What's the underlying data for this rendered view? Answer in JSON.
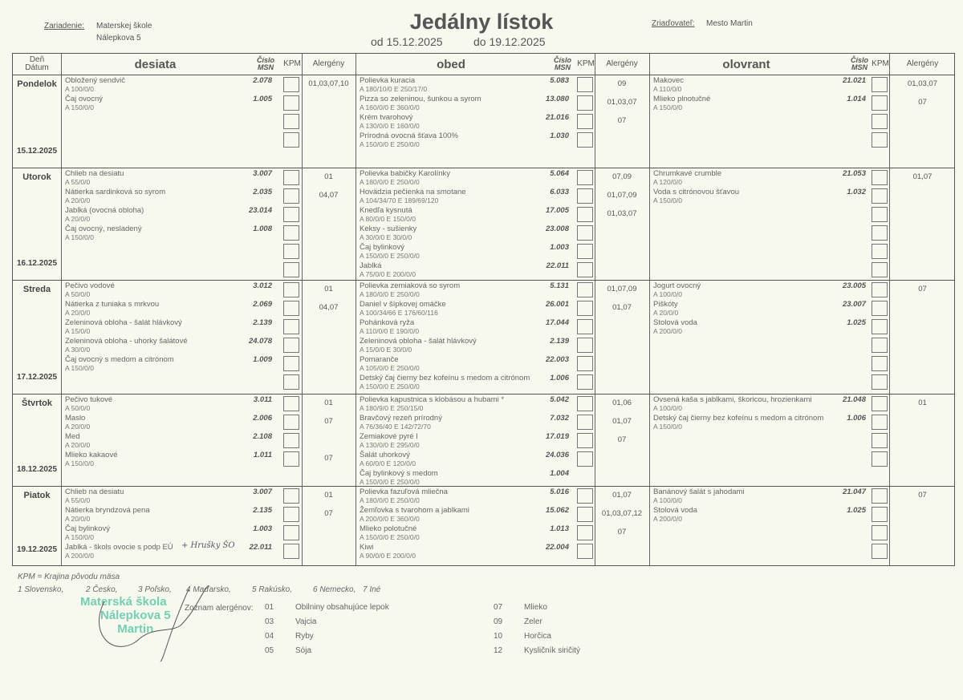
{
  "header": {
    "facility_label": "Zariadenie:",
    "facility_name": "Materskej škole",
    "facility_address": "Nálepkova 5",
    "title": "Jedálny lístok",
    "date_from": "od 15.12.2025",
    "date_to": "do 19.12.2025",
    "founder_label": "Zriaďovateľ:",
    "founder_name": "Mesto Martin"
  },
  "columns": {
    "day": "Deň",
    "date": "Dátum",
    "meals": [
      "desiata",
      "obed",
      "olovrant"
    ],
    "msn_1": "Číslo",
    "msn_2": "MSN",
    "kpm": "KPM",
    "allergens": "Alergény"
  },
  "days": [
    {
      "name": "Pondelok",
      "date": "15.12.2025",
      "meals": [
        [
          {
            "name": "Obložený sendvič",
            "portion": "A 100/0/0",
            "msn": "2.078",
            "allergens": "01,03,07,10"
          },
          {
            "name": "Čaj ovocný",
            "portion": "A 150/0/0",
            "msn": "1.005",
            "allergens": ""
          }
        ],
        [
          {
            "name": "Polievka kuracia",
            "portion": "A 180/10/0 E 250/17/0",
            "msn": "5.083",
            "allergens": "09"
          },
          {
            "name": "Pizza so zeleninou, šunkou a syrom",
            "portion": "A 160/0/0 E 360/0/0",
            "msn": "13.080",
            "allergens": "01,03,07"
          },
          {
            "name": "Krém tvarohový",
            "portion": "A 130/0/0 E 160/0/0",
            "msn": "21.016",
            "allergens": "07"
          },
          {
            "name": "Prírodná ovocná šťava 100%",
            "portion": "A 150/0/0 E 250/0/0",
            "msn": "1.030",
            "allergens": ""
          }
        ],
        [
          {
            "name": "Makovec",
            "portion": "A 110/0/0",
            "msn": "21.021",
            "allergens": "01,03,07"
          },
          {
            "name": "Mlieko plnotučné",
            "portion": "A 150/0/0",
            "msn": "1.014",
            "allergens": "07"
          }
        ]
      ]
    },
    {
      "name": "Utorok",
      "date": "16.12.2025",
      "meals": [
        [
          {
            "name": "Chlieb na desiatu",
            "portion": "A 55/0/0",
            "msn": "3.007",
            "allergens": "01"
          },
          {
            "name": "Nátierka sardinková so syrom",
            "portion": "A 20/0/0",
            "msn": "2.035",
            "allergens": "04,07"
          },
          {
            "name": "Jablká (ovocná obloha)",
            "portion": "A 20/0/0",
            "msn": "23.014",
            "allergens": ""
          },
          {
            "name": "Čaj ovocný, nesladený",
            "portion": "A 150/0/0",
            "msn": "1.008",
            "allergens": ""
          }
        ],
        [
          {
            "name": "Polievka babičky Karolínky",
            "portion": "A 180/0/0 E 250/0/0",
            "msn": "5.064",
            "allergens": "07,09"
          },
          {
            "name": "Hovädzia pečienka na smotane",
            "portion": "A 104/34/70 E 189/69/120",
            "msn": "6.033",
            "allergens": "01,07,09"
          },
          {
            "name": "Knedľa kysnutá",
            "portion": "A 80/0/0 E 150/0/0",
            "msn": "17.005",
            "allergens": "01,03,07"
          },
          {
            "name": "Keksy - sušienky",
            "portion": "A 30/0/0 E 30/0/0",
            "msn": "23.008",
            "allergens": ""
          },
          {
            "name": "Čaj bylinkový",
            "portion": "A 150/0/0 E 250/0/0",
            "msn": "1.003",
            "allergens": ""
          },
          {
            "name": "Jablká",
            "portion": "A 75/0/0 E 200/0/0",
            "msn": "22.011",
            "allergens": ""
          }
        ],
        [
          {
            "name": "Chrumkavé crumble",
            "portion": "A 120/0/0",
            "msn": "21.053",
            "allergens": "01,07"
          },
          {
            "name": "Voda s citrónovou šťavou",
            "portion": "A 150/0/0",
            "msn": "1.032",
            "allergens": ""
          }
        ]
      ]
    },
    {
      "name": "Streda",
      "date": "17.12.2025",
      "meals": [
        [
          {
            "name": "Pečivo vodové",
            "portion": "A 50/0/0",
            "msn": "3.012",
            "allergens": "01"
          },
          {
            "name": "Nátierka z tuniaka s mrkvou",
            "portion": "A 20/0/0",
            "msn": "2.069",
            "allergens": "04,07"
          },
          {
            "name": "Zeleninová obloha - šalát hlávkový",
            "portion": "A 15/0/0",
            "msn": "2.139",
            "allergens": ""
          },
          {
            "name": "Zeleninová obloha - uhorky šalátové",
            "portion": "A 30/0/0",
            "msn": "24.078",
            "allergens": ""
          },
          {
            "name": "Čaj ovocný s medom a citrónom",
            "portion": "A 150/0/0",
            "msn": "1.009",
            "allergens": ""
          }
        ],
        [
          {
            "name": "Polievka zemiaková so syrom",
            "portion": "A 180/0/0 E 250/0/0",
            "msn": "5.131",
            "allergens": "01,07,09"
          },
          {
            "name": "Daniel v šípkovej omáčke",
            "portion": "A 100/34/66 E 176/60/116",
            "msn": "26.001",
            "allergens": "01,07"
          },
          {
            "name": "Pohánková ryža",
            "portion": "A 110/0/0 E 190/0/0",
            "msn": "17.044",
            "allergens": ""
          },
          {
            "name": "Zeleninová obloha - šalát hlávkový",
            "portion": "A 15/0/0 E 30/0/0",
            "msn": "2.139",
            "allergens": ""
          },
          {
            "name": "Pomaranče",
            "portion": "A 105/0/0 E 250/0/0",
            "msn": "22.003",
            "allergens": ""
          },
          {
            "name": "Detský čaj čierny bez kofeínu s medom a citrónom",
            "portion": "A 150/0/0 E 250/0/0",
            "msn": "1.006",
            "allergens": ""
          }
        ],
        [
          {
            "name": "Jogurt ovocný",
            "portion": "A 100/0/0",
            "msn": "23.005",
            "allergens": "07"
          },
          {
            "name": "Piškóty",
            "portion": "A 20/0/0",
            "msn": "23.007",
            "allergens": ""
          },
          {
            "name": "Stolová voda",
            "portion": "A 200/0/0",
            "msn": "1.025",
            "allergens": ""
          }
        ]
      ]
    },
    {
      "name": "Štvrtok",
      "date": "18.12.2025",
      "meals": [
        [
          {
            "name": "Pečivo tukové",
            "portion": "A 50/0/0",
            "msn": "3.011",
            "allergens": "01"
          },
          {
            "name": "Maslo",
            "portion": "A 20/0/0",
            "msn": "2.006",
            "allergens": "07"
          },
          {
            "name": "Med",
            "portion": "A 20/0/0",
            "msn": "2.108",
            "allergens": ""
          },
          {
            "name": "Mlieko kakaové",
            "portion": "A 150/0/0",
            "msn": "1.011",
            "allergens": "07"
          }
        ],
        [
          {
            "name": "Polievka kapustnica s klobásou a hubami *",
            "portion": "A 180/9/0 E 250/15/0",
            "msn": "5.042",
            "allergens": "01,06"
          },
          {
            "name": "Bravčový rezeň prírodný",
            "portion": "A 76/36/40 E 142/72/70",
            "msn": "7.032",
            "allergens": "01,07"
          },
          {
            "name": "Zemiakové pyré I",
            "portion": "A 130/0/0 E 295/0/0",
            "msn": "17.019",
            "allergens": "07"
          },
          {
            "name": "Šalát uhorkový",
            "portion": "A 60/0/0 E 120/0/0",
            "msn": "24.036",
            "allergens": ""
          },
          {
            "name": "Čaj bylinkový s medom",
            "portion": "A 150/0/0 E 250/0/0",
            "msn": "1.004",
            "allergens": ""
          }
        ],
        [
          {
            "name": "Ovsená kaša s jablkami, škoricou, hrozienkami",
            "portion": "A 100/0/0",
            "msn": "21.048",
            "allergens": "01"
          },
          {
            "name": "Detský čaj čierny bez kofeínu s medom a citrónom",
            "portion": "A 150/0/0",
            "msn": "1.006",
            "allergens": ""
          }
        ]
      ]
    },
    {
      "name": "Piatok",
      "date": "19.12.2025",
      "meals": [
        [
          {
            "name": "Chlieb na desiatu",
            "portion": "A 55/0/0",
            "msn": "3.007",
            "allergens": "01"
          },
          {
            "name": "Nátierka bryndzová pena",
            "portion": "A 20/0/0",
            "msn": "2.135",
            "allergens": "07"
          },
          {
            "name": "Čaj bylinkový",
            "portion": "A 150/0/0",
            "msn": "1.003",
            "allergens": ""
          },
          {
            "name": "Jablká - škols ovocie s podp EÚ",
            "portion": "A 200/0/0",
            "msn": "22.011",
            "allergens": "",
            "note": "+ Hrušky ŠO"
          }
        ],
        [
          {
            "name": "Polievka fazuľová mliečna",
            "portion": "A 180/0/0 E 250/0/0",
            "msn": "5.016",
            "allergens": "01,07"
          },
          {
            "name": "Žemľovka s tvarohom a jablkami",
            "portion": "A 200/0/0 E 360/0/0",
            "msn": "15.062",
            "allergens": "01,03,07,12"
          },
          {
            "name": "Mlieko polotučné",
            "portion": "A 150/0/0 E 250/0/0",
            "msn": "1.013",
            "allergens": "07"
          },
          {
            "name": "Kiwi",
            "portion": "A 90/0/0 E 200/0/0",
            "msn": "22.004",
            "allergens": ""
          }
        ],
        [
          {
            "name": "Banánový šalát s jahodami",
            "portion": "A 100/0/0",
            "msn": "21.047",
            "allergens": "07"
          },
          {
            "name": "Stolová voda",
            "portion": "A 200/0/0",
            "msn": "1.025",
            "allergens": ""
          }
        ]
      ]
    }
  ],
  "footer": {
    "kpm_legend": "KPM = Krajina pôvodu mäsa",
    "countries": [
      "1 Slovensko,",
      "2 Česko,",
      "3 Poľsko,",
      "4 Maďarsko,",
      "5 Rakúsko,",
      "6 Nemecko,",
      "7 Iné"
    ],
    "allergen_list_label": "Zoznam alergénov:",
    "allergen_list": [
      {
        "code": "01",
        "name": "Obilniny obsahujúce lepok"
      },
      {
        "code": "03",
        "name": "Vajcia"
      },
      {
        "code": "04",
        "name": "Ryby"
      },
      {
        "code": "05",
        "name": "Sója"
      },
      {
        "code": "07",
        "name": "Mlieko"
      },
      {
        "code": "09",
        "name": "Zeler"
      },
      {
        "code": "10",
        "name": "Horčica"
      },
      {
        "code": "12",
        "name": "Kysličník siričitý"
      }
    ],
    "stamp": [
      "Materská škola",
      "Nálepkova 5",
      "Martin"
    ]
  },
  "colors": {
    "paper": "#f7f8ee",
    "ink": "#444444",
    "stamp": "#5cc8a8"
  }
}
